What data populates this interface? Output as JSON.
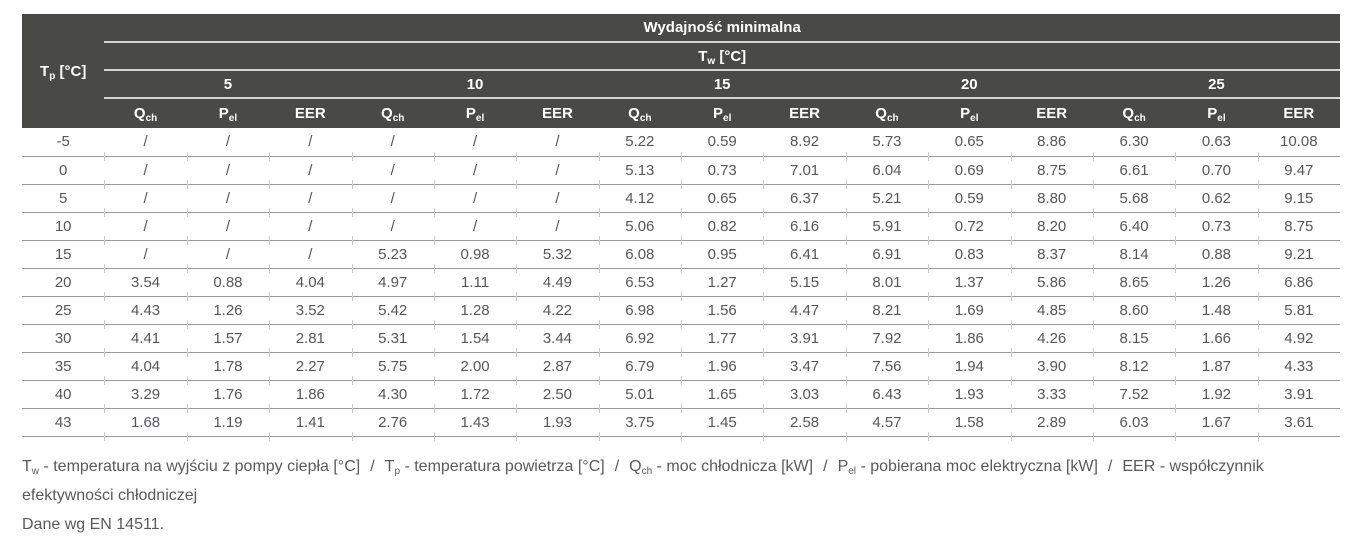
{
  "table": {
    "title": "Wydajność minimalna",
    "row_header": {
      "base": "T",
      "sub": "p",
      "rest": " [°C]"
    },
    "col_header": {
      "base": "T",
      "sub": "w",
      "rest": " [°C]"
    },
    "tw_groups": [
      "5",
      "10",
      "15",
      "20",
      "25"
    ],
    "metrics": [
      {
        "base": "Q",
        "sub": "ch"
      },
      {
        "base": "P",
        "sub": "el"
      },
      {
        "base": "EER",
        "sub": ""
      }
    ],
    "rows": [
      {
        "tp": "-5",
        "values": [
          "/",
          "/",
          "/",
          "/",
          "/",
          "/",
          "5.22",
          "0.59",
          "8.92",
          "5.73",
          "0.65",
          "8.86",
          "6.30",
          "0.63",
          "10.08"
        ]
      },
      {
        "tp": "0",
        "values": [
          "/",
          "/",
          "/",
          "/",
          "/",
          "/",
          "5.13",
          "0.73",
          "7.01",
          "6.04",
          "0.69",
          "8.75",
          "6.61",
          "0.70",
          "9.47"
        ]
      },
      {
        "tp": "5",
        "values": [
          "/",
          "/",
          "/",
          "/",
          "/",
          "/",
          "4.12",
          "0.65",
          "6.37",
          "5.21",
          "0.59",
          "8.80",
          "5.68",
          "0.62",
          "9.15"
        ]
      },
      {
        "tp": "10",
        "values": [
          "/",
          "/",
          "/",
          "/",
          "/",
          "/",
          "5.06",
          "0.82",
          "6.16",
          "5.91",
          "0.72",
          "8.20",
          "6.40",
          "0.73",
          "8.75"
        ]
      },
      {
        "tp": "15",
        "values": [
          "/",
          "/",
          "/",
          "5.23",
          "0.98",
          "5.32",
          "6.08",
          "0.95",
          "6.41",
          "6.91",
          "0.83",
          "8.37",
          "8.14",
          "0.88",
          "9.21"
        ]
      },
      {
        "tp": "20",
        "values": [
          "3.54",
          "0.88",
          "4.04",
          "4.97",
          "1.11",
          "4.49",
          "6.53",
          "1.27",
          "5.15",
          "8.01",
          "1.37",
          "5.86",
          "8.65",
          "1.26",
          "6.86"
        ]
      },
      {
        "tp": "25",
        "values": [
          "4.43",
          "1.26",
          "3.52",
          "5.42",
          "1.28",
          "4.22",
          "6.98",
          "1.56",
          "4.47",
          "8.21",
          "1.69",
          "4.85",
          "8.60",
          "1.48",
          "5.81"
        ]
      },
      {
        "tp": "30",
        "values": [
          "4.41",
          "1.57",
          "2.81",
          "5.31",
          "1.54",
          "3.44",
          "6.92",
          "1.77",
          "3.91",
          "7.92",
          "1.86",
          "4.26",
          "8.15",
          "1.66",
          "4.92"
        ]
      },
      {
        "tp": "35",
        "values": [
          "4.04",
          "1.78",
          "2.27",
          "5.75",
          "2.00",
          "2.87",
          "6.79",
          "1.96",
          "3.47",
          "7.56",
          "1.94",
          "3.90",
          "8.12",
          "1.87",
          "4.33"
        ]
      },
      {
        "tp": "40",
        "values": [
          "3.29",
          "1.76",
          "1.86",
          "4.30",
          "1.72",
          "2.50",
          "5.01",
          "1.65",
          "3.03",
          "6.43",
          "1.93",
          "3.33",
          "7.52",
          "1.92",
          "3.91"
        ]
      },
      {
        "tp": "43",
        "values": [
          "1.68",
          "1.19",
          "1.41",
          "2.76",
          "1.43",
          "1.93",
          "3.75",
          "1.45",
          "2.58",
          "4.57",
          "1.58",
          "2.89",
          "6.03",
          "1.67",
          "3.61"
        ]
      }
    ]
  },
  "footer": {
    "separator": "/",
    "items": [
      {
        "base": "T",
        "sub": "w",
        "text": " - temperatura na wyjściu z pompy ciepła [°C]"
      },
      {
        "base": "T",
        "sub": "p",
        "text": " - temperatura powietrza [°C]"
      },
      {
        "base": "Q",
        "sub": "ch",
        "text": " - moc chłodnicza [kW]"
      },
      {
        "base": "P",
        "sub": "el",
        "text": " - pobierana moc elektryczna [kW]"
      },
      {
        "base": "EER",
        "sub": "",
        "text": " - współczynnik efektywności chłodniczej"
      }
    ],
    "line2": "Dane wg EN 14511."
  },
  "colors": {
    "header_bg": "#494947",
    "header_text": "#ffffff",
    "header_line": "#d6d6d6",
    "body_text": "#57575a",
    "row_line": "#9a9a9a",
    "tick": "#cccccc",
    "footer_text": "#5a5a5c",
    "page_bg": "#ffffff"
  }
}
